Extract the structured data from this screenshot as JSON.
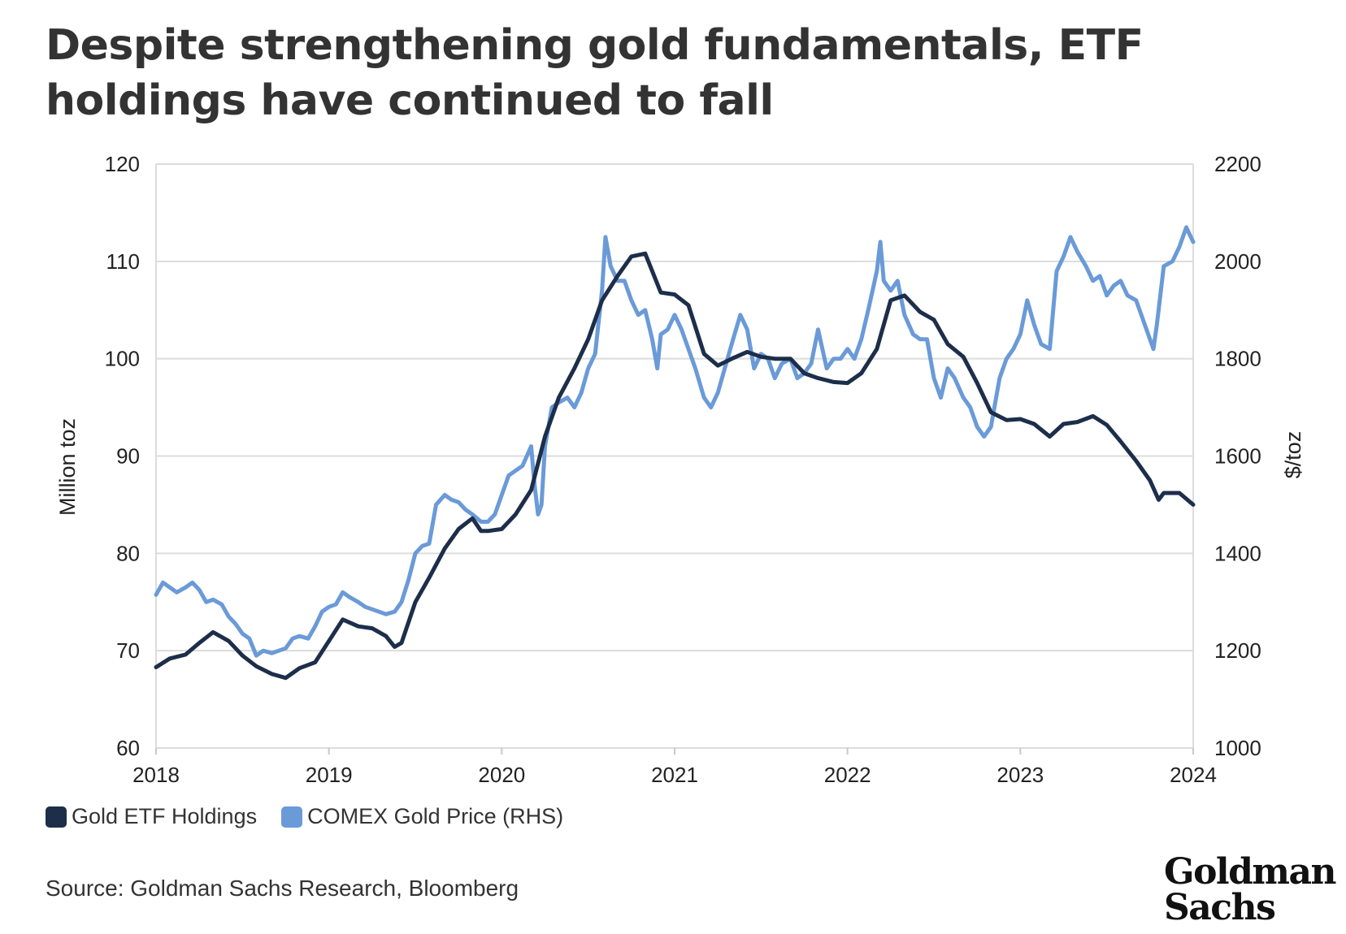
{
  "title": "Despite strengthening gold fundamentals, ETF holdings have continued to fall",
  "source": "Source: Goldman Sachs Research, Bloomberg",
  "logo": {
    "line1": "Goldman",
    "line2": "Sachs"
  },
  "colors": {
    "etf": "#1c2e4a",
    "price": "#6a9ad8",
    "grid": "#dcdcdc"
  },
  "chart_data": {
    "type": "line",
    "xlabel": "",
    "ylabel_left": "Million toz",
    "ylabel_right": "$/toz",
    "x_ticks": [
      "2018",
      "2019",
      "2020",
      "2021",
      "2022",
      "2023",
      "2024"
    ],
    "xlim": [
      2018,
      2024
    ],
    "ylim_left": [
      60,
      120
    ],
    "ylim_right": [
      1000,
      2200
    ],
    "yticks_left": [
      "60",
      "70",
      "80",
      "90",
      "100",
      "110",
      "120"
    ],
    "yticks_right": [
      "1000",
      "1200",
      "1400",
      "1600",
      "1800",
      "2000",
      "2200"
    ],
    "grid": true,
    "legend_position": "bottom-left",
    "series": [
      {
        "name": "Gold ETF Holdings",
        "axis": "left",
        "points": [
          [
            2018.0,
            68.3
          ],
          [
            2018.08,
            69.2
          ],
          [
            2018.17,
            69.6
          ],
          [
            2018.25,
            70.8
          ],
          [
            2018.33,
            71.9
          ],
          [
            2018.42,
            71.0
          ],
          [
            2018.5,
            69.5
          ],
          [
            2018.58,
            68.4
          ],
          [
            2018.67,
            67.6
          ],
          [
            2018.75,
            67.2
          ],
          [
            2018.83,
            68.2
          ],
          [
            2018.92,
            68.8
          ],
          [
            2019.0,
            71.0
          ],
          [
            2019.08,
            73.2
          ],
          [
            2019.17,
            72.5
          ],
          [
            2019.25,
            72.3
          ],
          [
            2019.33,
            71.5
          ],
          [
            2019.38,
            70.4
          ],
          [
            2019.42,
            70.8
          ],
          [
            2019.5,
            75.0
          ],
          [
            2019.58,
            77.5
          ],
          [
            2019.67,
            80.5
          ],
          [
            2019.75,
            82.5
          ],
          [
            2019.83,
            83.6
          ],
          [
            2019.88,
            82.3
          ],
          [
            2019.92,
            82.3
          ],
          [
            2020.0,
            82.5
          ],
          [
            2020.08,
            84.0
          ],
          [
            2020.17,
            86.5
          ],
          [
            2020.25,
            92.0
          ],
          [
            2020.33,
            96.0
          ],
          [
            2020.42,
            99.0
          ],
          [
            2020.5,
            102.0
          ],
          [
            2020.58,
            106.0
          ],
          [
            2020.67,
            108.5
          ],
          [
            2020.75,
            110.5
          ],
          [
            2020.83,
            110.8
          ],
          [
            2020.92,
            106.8
          ],
          [
            2021.0,
            106.6
          ],
          [
            2021.08,
            105.5
          ],
          [
            2021.17,
            100.5
          ],
          [
            2021.25,
            99.3
          ],
          [
            2021.33,
            100.0
          ],
          [
            2021.42,
            100.7
          ],
          [
            2021.5,
            100.2
          ],
          [
            2021.58,
            100.0
          ],
          [
            2021.67,
            100.0
          ],
          [
            2021.75,
            98.5
          ],
          [
            2021.83,
            98.0
          ],
          [
            2021.92,
            97.6
          ],
          [
            2022.0,
            97.5
          ],
          [
            2022.08,
            98.5
          ],
          [
            2022.17,
            101.0
          ],
          [
            2022.25,
            106.0
          ],
          [
            2022.33,
            106.5
          ],
          [
            2022.42,
            104.8
          ],
          [
            2022.5,
            104.0
          ],
          [
            2022.58,
            101.5
          ],
          [
            2022.67,
            100.2
          ],
          [
            2022.75,
            97.5
          ],
          [
            2022.83,
            94.5
          ],
          [
            2022.92,
            93.7
          ],
          [
            2023.0,
            93.8
          ],
          [
            2023.08,
            93.3
          ],
          [
            2023.17,
            92.0
          ],
          [
            2023.25,
            93.3
          ],
          [
            2023.33,
            93.5
          ],
          [
            2023.42,
            94.1
          ],
          [
            2023.5,
            93.2
          ],
          [
            2023.58,
            91.5
          ],
          [
            2023.67,
            89.5
          ],
          [
            2023.75,
            87.5
          ],
          [
            2023.8,
            85.5
          ],
          [
            2023.83,
            86.2
          ],
          [
            2023.92,
            86.2
          ],
          [
            2024.0,
            85.0
          ]
        ]
      },
      {
        "name": "COMEX Gold Price (RHS)",
        "axis": "right",
        "points": [
          [
            2018.0,
            1315
          ],
          [
            2018.04,
            1340
          ],
          [
            2018.08,
            1330
          ],
          [
            2018.12,
            1320
          ],
          [
            2018.17,
            1330
          ],
          [
            2018.21,
            1340
          ],
          [
            2018.25,
            1325
          ],
          [
            2018.29,
            1300
          ],
          [
            2018.33,
            1305
          ],
          [
            2018.38,
            1295
          ],
          [
            2018.42,
            1270
          ],
          [
            2018.46,
            1255
          ],
          [
            2018.5,
            1235
          ],
          [
            2018.54,
            1225
          ],
          [
            2018.58,
            1190
          ],
          [
            2018.62,
            1200
          ],
          [
            2018.67,
            1195
          ],
          [
            2018.71,
            1200
          ],
          [
            2018.75,
            1205
          ],
          [
            2018.79,
            1225
          ],
          [
            2018.83,
            1230
          ],
          [
            2018.88,
            1225
          ],
          [
            2018.92,
            1250
          ],
          [
            2018.96,
            1280
          ],
          [
            2019.0,
            1290
          ],
          [
            2019.04,
            1295
          ],
          [
            2019.08,
            1320
          ],
          [
            2019.12,
            1310
          ],
          [
            2019.17,
            1300
          ],
          [
            2019.21,
            1290
          ],
          [
            2019.25,
            1285
          ],
          [
            2019.29,
            1280
          ],
          [
            2019.33,
            1275
          ],
          [
            2019.38,
            1280
          ],
          [
            2019.42,
            1300
          ],
          [
            2019.46,
            1345
          ],
          [
            2019.5,
            1400
          ],
          [
            2019.54,
            1415
          ],
          [
            2019.58,
            1420
          ],
          [
            2019.62,
            1500
          ],
          [
            2019.67,
            1520
          ],
          [
            2019.71,
            1510
          ],
          [
            2019.75,
            1505
          ],
          [
            2019.79,
            1490
          ],
          [
            2019.83,
            1480
          ],
          [
            2019.88,
            1465
          ],
          [
            2019.92,
            1465
          ],
          [
            2019.96,
            1480
          ],
          [
            2020.0,
            1520
          ],
          [
            2020.04,
            1560
          ],
          [
            2020.08,
            1570
          ],
          [
            2020.12,
            1580
          ],
          [
            2020.17,
            1620
          ],
          [
            2020.19,
            1540
          ],
          [
            2020.21,
            1480
          ],
          [
            2020.23,
            1500
          ],
          [
            2020.25,
            1620
          ],
          [
            2020.29,
            1700
          ],
          [
            2020.33,
            1710
          ],
          [
            2020.38,
            1720
          ],
          [
            2020.42,
            1700
          ],
          [
            2020.46,
            1730
          ],
          [
            2020.5,
            1780
          ],
          [
            2020.54,
            1810
          ],
          [
            2020.58,
            1940
          ],
          [
            2020.6,
            2050
          ],
          [
            2020.63,
            1990
          ],
          [
            2020.67,
            1960
          ],
          [
            2020.71,
            1960
          ],
          [
            2020.75,
            1920
          ],
          [
            2020.79,
            1890
          ],
          [
            2020.83,
            1900
          ],
          [
            2020.87,
            1840
          ],
          [
            2020.9,
            1780
          ],
          [
            2020.92,
            1850
          ],
          [
            2020.96,
            1860
          ],
          [
            2021.0,
            1890
          ],
          [
            2021.04,
            1860
          ],
          [
            2021.08,
            1820
          ],
          [
            2021.12,
            1780
          ],
          [
            2021.17,
            1720
          ],
          [
            2021.21,
            1700
          ],
          [
            2021.25,
            1730
          ],
          [
            2021.29,
            1780
          ],
          [
            2021.33,
            1830
          ],
          [
            2021.38,
            1890
          ],
          [
            2021.42,
            1860
          ],
          [
            2021.46,
            1780
          ],
          [
            2021.5,
            1810
          ],
          [
            2021.54,
            1800
          ],
          [
            2021.58,
            1760
          ],
          [
            2021.62,
            1790
          ],
          [
            2021.67,
            1800
          ],
          [
            2021.71,
            1760
          ],
          [
            2021.75,
            1770
          ],
          [
            2021.79,
            1790
          ],
          [
            2021.83,
            1860
          ],
          [
            2021.88,
            1780
          ],
          [
            2021.92,
            1800
          ],
          [
            2021.96,
            1800
          ],
          [
            2022.0,
            1820
          ],
          [
            2022.04,
            1800
          ],
          [
            2022.08,
            1840
          ],
          [
            2022.12,
            1900
          ],
          [
            2022.17,
            1980
          ],
          [
            2022.19,
            2040
          ],
          [
            2022.21,
            1960
          ],
          [
            2022.25,
            1940
          ],
          [
            2022.29,
            1960
          ],
          [
            2022.33,
            1890
          ],
          [
            2022.38,
            1850
          ],
          [
            2022.42,
            1840
          ],
          [
            2022.46,
            1840
          ],
          [
            2022.5,
            1760
          ],
          [
            2022.54,
            1720
          ],
          [
            2022.58,
            1780
          ],
          [
            2022.62,
            1760
          ],
          [
            2022.67,
            1720
          ],
          [
            2022.71,
            1700
          ],
          [
            2022.75,
            1660
          ],
          [
            2022.79,
            1640
          ],
          [
            2022.83,
            1660
          ],
          [
            2022.88,
            1760
          ],
          [
            2022.92,
            1800
          ],
          [
            2022.96,
            1820
          ],
          [
            2023.0,
            1850
          ],
          [
            2023.04,
            1920
          ],
          [
            2023.08,
            1870
          ],
          [
            2023.12,
            1830
          ],
          [
            2023.17,
            1820
          ],
          [
            2023.21,
            1980
          ],
          [
            2023.25,
            2010
          ],
          [
            2023.29,
            2050
          ],
          [
            2023.33,
            2020
          ],
          [
            2023.38,
            1990
          ],
          [
            2023.42,
            1960
          ],
          [
            2023.46,
            1970
          ],
          [
            2023.5,
            1930
          ],
          [
            2023.54,
            1950
          ],
          [
            2023.58,
            1960
          ],
          [
            2023.62,
            1930
          ],
          [
            2023.67,
            1920
          ],
          [
            2023.71,
            1880
          ],
          [
            2023.75,
            1840
          ],
          [
            2023.77,
            1820
          ],
          [
            2023.79,
            1870
          ],
          [
            2023.83,
            1990
          ],
          [
            2023.88,
            2000
          ],
          [
            2023.92,
            2030
          ],
          [
            2023.96,
            2070
          ],
          [
            2024.0,
            2040
          ]
        ]
      }
    ]
  }
}
